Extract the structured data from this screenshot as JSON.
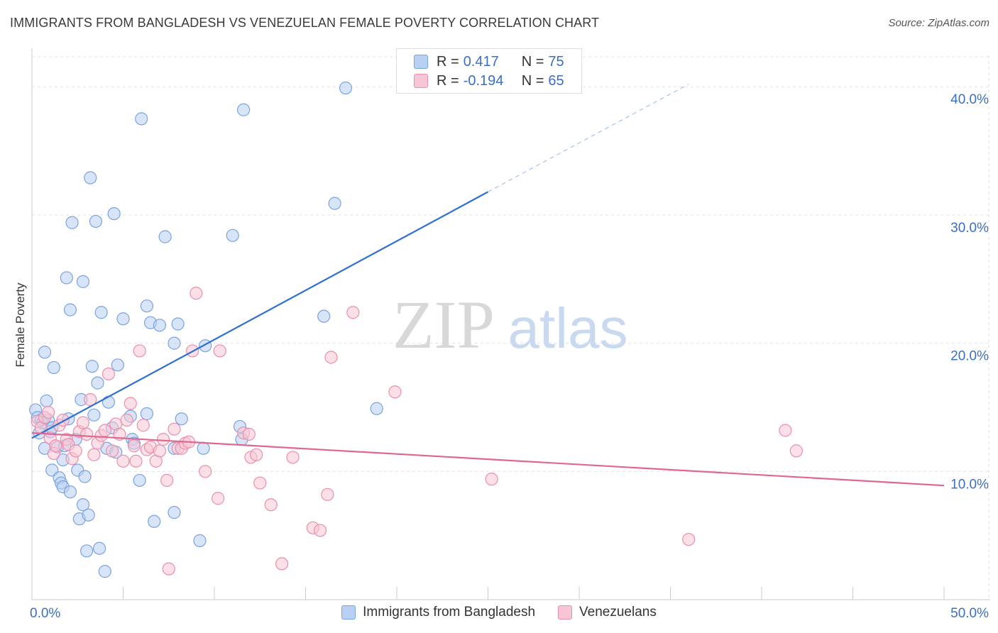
{
  "header": {
    "title": "IMMIGRANTS FROM BANGLADESH VS VENEZUELAN FEMALE POVERTY CORRELATION CHART",
    "source": "Source: ZipAtlas.com"
  },
  "watermark": {
    "zip": "ZIP",
    "atlas": "atlas"
  },
  "legend": {
    "r_label": "R =",
    "n_label": "N =",
    "rows": [
      {
        "r": "0.417",
        "n": "75",
        "fill": "#b8d0f3",
        "stroke": "#7aa3e0"
      },
      {
        "r": "-0.194",
        "n": "65",
        "fill": "#f7c6d4",
        "stroke": "#ea8fac"
      }
    ]
  },
  "chart_data": {
    "type": "scatter",
    "title": "IMMIGRANTS FROM BANGLADESH VS VENEZUELAN FEMALE POVERTY CORRELATION CHART",
    "xlabel": "",
    "ylabel": "Female Poverty",
    "xlim": [
      0,
      50
    ],
    "ylim": [
      0,
      43
    ],
    "x_ticks": [
      0,
      5,
      10,
      15,
      20,
      25,
      30,
      35,
      40,
      45,
      50
    ],
    "x_tick_labels": [
      {
        "value": 0,
        "label": "0.0%"
      },
      {
        "value": 50,
        "label": "50.0%"
      }
    ],
    "y_tick_labels": [
      {
        "value": 10,
        "label": "10.0%"
      },
      {
        "value": 20,
        "label": "20.0%"
      },
      {
        "value": 30,
        "label": "30.0%"
      },
      {
        "value": 40,
        "label": "40.0%"
      }
    ],
    "grid": true,
    "legend_position": "top-center",
    "series": [
      {
        "name": "Immigrants from Bangladesh",
        "color": "#7aa3e0",
        "fill": "#b8d0f3",
        "trend": {
          "x0": 0,
          "y0": 12.6,
          "x1": 25,
          "y1": 31.8,
          "dash_to_x": 36,
          "dash_to_y": 40.2,
          "color": "#2f6fd0"
        },
        "points": [
          [
            0.2,
            14.8
          ],
          [
            0.3,
            14.2
          ],
          [
            0.4,
            13.0
          ],
          [
            0.5,
            14.0
          ],
          [
            0.6,
            13.8
          ],
          [
            0.7,
            11.8
          ],
          [
            0.8,
            15.5
          ],
          [
            0.7,
            19.3
          ],
          [
            0.9,
            14.0
          ],
          [
            1.0,
            13.1
          ],
          [
            1.1,
            13.4
          ],
          [
            1.1,
            10.1
          ],
          [
            1.2,
            18.1
          ],
          [
            1.4,
            11.9
          ],
          [
            1.5,
            9.5
          ],
          [
            1.6,
            9.1
          ],
          [
            1.7,
            10.9
          ],
          [
            1.7,
            8.8
          ],
          [
            1.8,
            12.0
          ],
          [
            1.9,
            25.1
          ],
          [
            2.0,
            14.1
          ],
          [
            2.1,
            22.6
          ],
          [
            2.1,
            8.4
          ],
          [
            2.2,
            29.4
          ],
          [
            2.4,
            12.5
          ],
          [
            2.5,
            10.1
          ],
          [
            2.6,
            6.3
          ],
          [
            2.7,
            15.6
          ],
          [
            2.8,
            7.4
          ],
          [
            2.8,
            24.8
          ],
          [
            2.9,
            9.6
          ],
          [
            3.0,
            3.8
          ],
          [
            3.1,
            6.6
          ],
          [
            3.2,
            32.9
          ],
          [
            3.3,
            18.2
          ],
          [
            3.4,
            14.4
          ],
          [
            3.5,
            29.5
          ],
          [
            3.6,
            16.9
          ],
          [
            3.7,
            4.0
          ],
          [
            3.8,
            22.4
          ],
          [
            4.0,
            2.2
          ],
          [
            4.1,
            11.8
          ],
          [
            4.2,
            15.4
          ],
          [
            4.4,
            13.4
          ],
          [
            4.5,
            30.1
          ],
          [
            4.6,
            11.5
          ],
          [
            4.7,
            18.3
          ],
          [
            5.0,
            21.9
          ],
          [
            5.4,
            14.3
          ],
          [
            5.5,
            12.5
          ],
          [
            5.6,
            12.2
          ],
          [
            5.9,
            9.3
          ],
          [
            6.0,
            37.5
          ],
          [
            6.3,
            22.9
          ],
          [
            6.3,
            14.5
          ],
          [
            6.5,
            21.6
          ],
          [
            6.7,
            6.1
          ],
          [
            7.0,
            21.4
          ],
          [
            7.3,
            28.3
          ],
          [
            7.8,
            6.8
          ],
          [
            7.8,
            11.8
          ],
          [
            7.8,
            20.0
          ],
          [
            8.0,
            21.5
          ],
          [
            8.2,
            14.1
          ],
          [
            9.2,
            4.6
          ],
          [
            9.4,
            11.8
          ],
          [
            9.5,
            19.8
          ],
          [
            11.0,
            28.4
          ],
          [
            11.4,
            13.5
          ],
          [
            11.6,
            38.2
          ],
          [
            16.0,
            22.1
          ],
          [
            16.6,
            30.9
          ],
          [
            17.2,
            39.9
          ],
          [
            18.9,
            14.9
          ],
          [
            11.5,
            12.5
          ]
        ]
      },
      {
        "name": "Venezuelans",
        "color": "#ea8fac",
        "fill": "#f7c6d4",
        "trend": {
          "x0": 0,
          "y0": 13.0,
          "x1": 50,
          "y1": 8.9,
          "color": "#e06890"
        },
        "points": [
          [
            0.3,
            13.9
          ],
          [
            0.5,
            13.4
          ],
          [
            0.7,
            14.2
          ],
          [
            0.9,
            14.6
          ],
          [
            1.0,
            12.6
          ],
          [
            1.2,
            11.4
          ],
          [
            1.3,
            12.0
          ],
          [
            1.5,
            13.6
          ],
          [
            1.7,
            14.0
          ],
          [
            1.9,
            12.5
          ],
          [
            2.0,
            12.1
          ],
          [
            2.2,
            11.0
          ],
          [
            2.4,
            11.6
          ],
          [
            2.6,
            13.1
          ],
          [
            2.8,
            13.8
          ],
          [
            3.0,
            12.9
          ],
          [
            3.2,
            15.6
          ],
          [
            3.4,
            11.3
          ],
          [
            3.6,
            12.2
          ],
          [
            3.8,
            12.8
          ],
          [
            4.0,
            13.2
          ],
          [
            4.2,
            17.6
          ],
          [
            4.4,
            11.6
          ],
          [
            4.6,
            13.7
          ],
          [
            4.8,
            12.9
          ],
          [
            5.0,
            10.8
          ],
          [
            5.2,
            14.0
          ],
          [
            5.4,
            15.3
          ],
          [
            5.6,
            12.0
          ],
          [
            5.7,
            10.8
          ],
          [
            5.9,
            19.4
          ],
          [
            6.1,
            13.6
          ],
          [
            6.3,
            11.7
          ],
          [
            6.5,
            11.9
          ],
          [
            6.8,
            10.8
          ],
          [
            7.0,
            11.6
          ],
          [
            7.2,
            12.5
          ],
          [
            7.4,
            9.3
          ],
          [
            7.5,
            2.4
          ],
          [
            7.8,
            13.3
          ],
          [
            8.0,
            11.8
          ],
          [
            8.2,
            11.8
          ],
          [
            8.4,
            12.2
          ],
          [
            8.6,
            12.3
          ],
          [
            8.8,
            19.4
          ],
          [
            9.0,
            23.9
          ],
          [
            9.5,
            10.0
          ],
          [
            10.2,
            7.9
          ],
          [
            10.3,
            19.4
          ],
          [
            11.6,
            13.0
          ],
          [
            11.9,
            12.9
          ],
          [
            12.0,
            11.1
          ],
          [
            12.3,
            11.3
          ],
          [
            12.5,
            9.1
          ],
          [
            13.1,
            7.4
          ],
          [
            13.7,
            2.8
          ],
          [
            14.3,
            11.1
          ],
          [
            15.4,
            5.6
          ],
          [
            15.8,
            5.4
          ],
          [
            16.2,
            8.2
          ],
          [
            16.4,
            18.9
          ],
          [
            17.6,
            22.4
          ],
          [
            19.9,
            16.2
          ],
          [
            25.2,
            9.4
          ],
          [
            36.0,
            4.7
          ]
        ],
        "extra_points": [
          [
            41.9,
            11.6
          ],
          [
            41.3,
            13.2
          ]
        ]
      }
    ]
  },
  "bottom_legend": [
    {
      "label": "Immigrants from Bangladesh",
      "fill": "#b8d0f3",
      "stroke": "#7aa3e0"
    },
    {
      "label": "Venezuelans",
      "fill": "#f7c6d4",
      "stroke": "#ea8fac"
    }
  ]
}
